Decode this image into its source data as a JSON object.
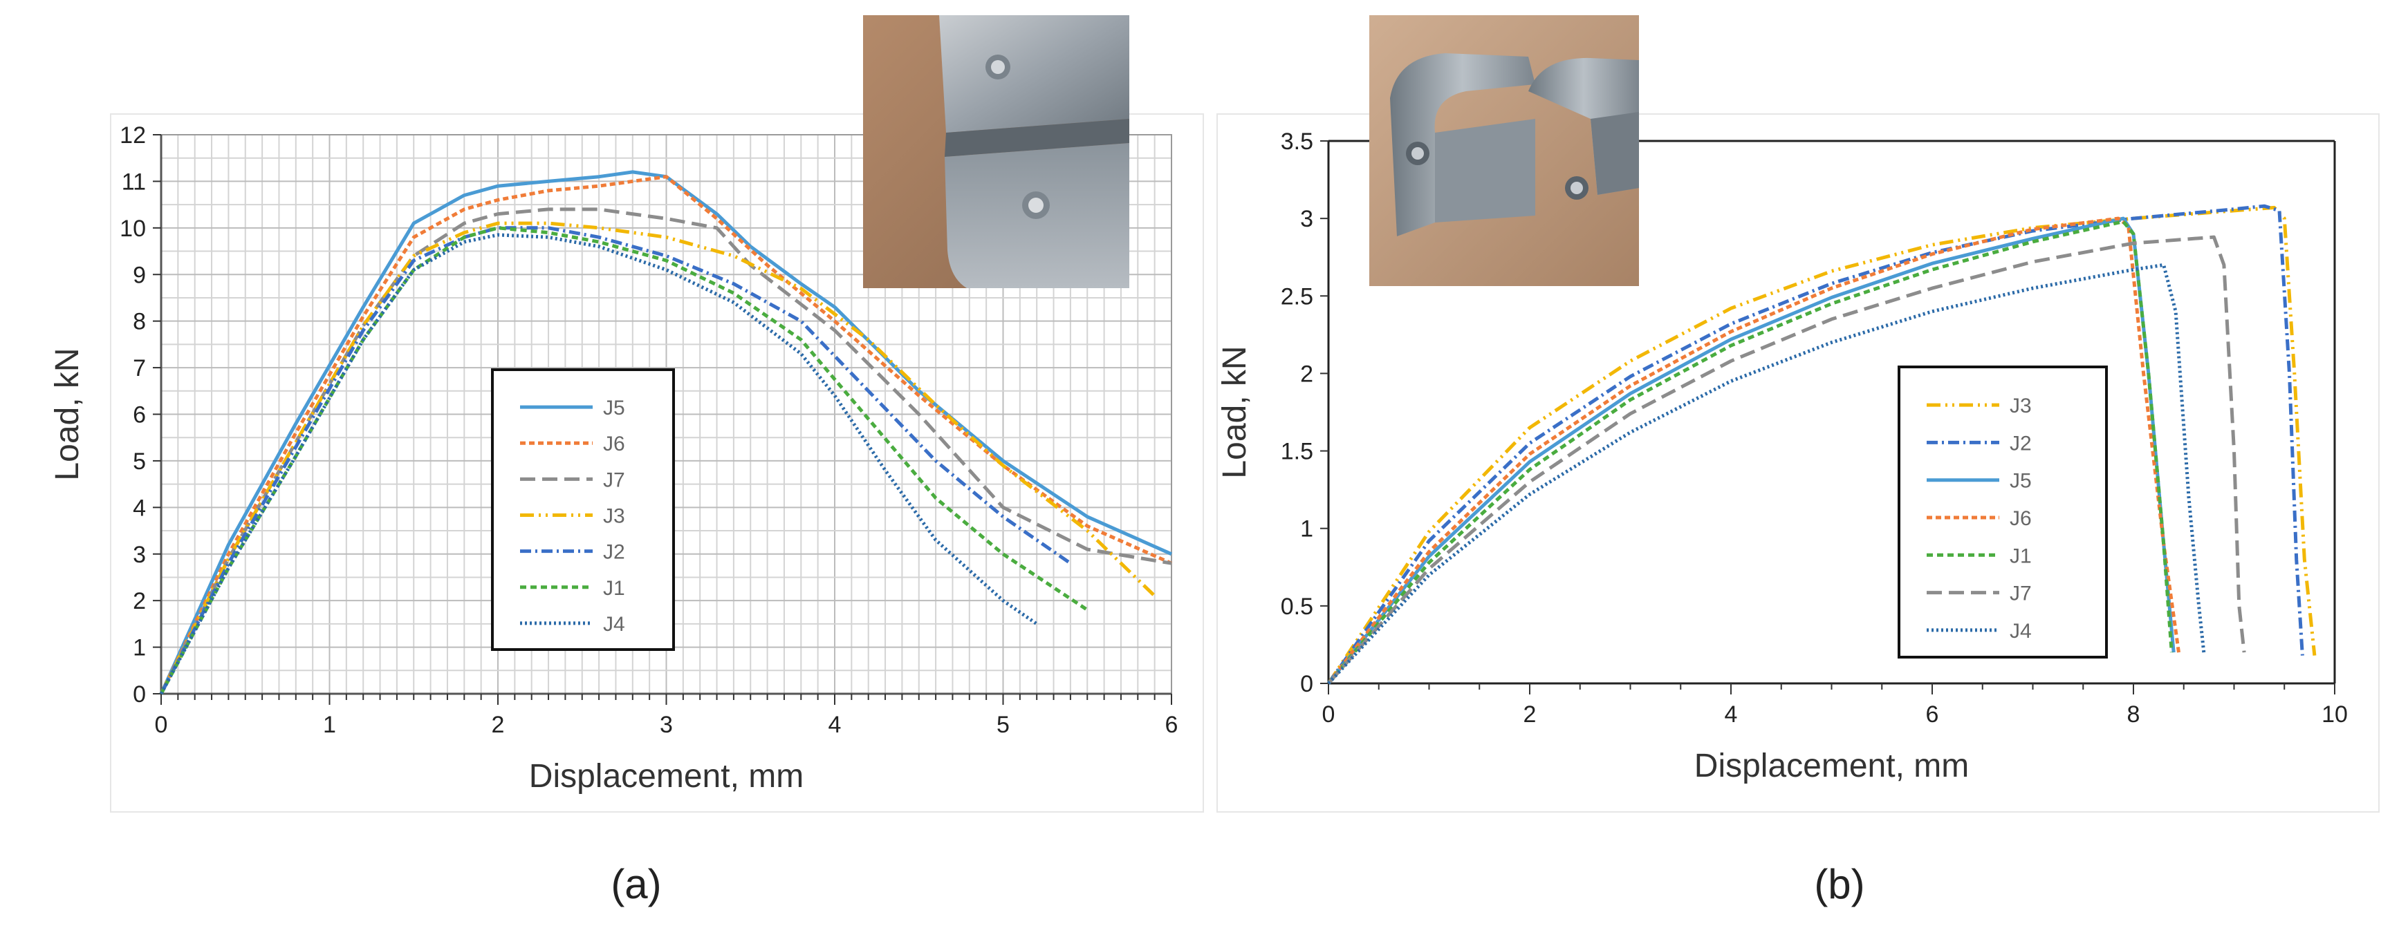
{
  "panels": [
    {
      "label": "(a)",
      "photo_icon": "bent-metal-plates-with-rivet-photo",
      "chart_data": {
        "type": "line",
        "title": "",
        "xlabel": "Displacement, mm",
        "ylabel": "Load, kN",
        "xlim": [
          0,
          6
        ],
        "ylim": [
          0,
          12
        ],
        "xticks": [
          0,
          1,
          2,
          3,
          4,
          5,
          6
        ],
        "yticks": [
          0,
          1,
          2,
          3,
          4,
          5,
          6,
          7,
          8,
          9,
          10,
          11,
          12
        ],
        "grid": true,
        "legend": "center",
        "series": [
          {
            "name": "J5",
            "color": "#4a9bd4",
            "dash": "solid",
            "points": [
              [
                0,
                0
              ],
              [
                0.4,
                3.2
              ],
              [
                0.8,
                5.8
              ],
              [
                1.2,
                8.3
              ],
              [
                1.5,
                10.1
              ],
              [
                1.8,
                10.7
              ],
              [
                2.0,
                10.9
              ],
              [
                2.3,
                11.0
              ],
              [
                2.6,
                11.1
              ],
              [
                2.8,
                11.2
              ],
              [
                3.0,
                11.1
              ],
              [
                3.3,
                10.3
              ],
              [
                3.5,
                9.6
              ],
              [
                3.8,
                8.8
              ],
              [
                4.0,
                8.3
              ],
              [
                4.5,
                6.5
              ],
              [
                5.0,
                5.0
              ],
              [
                5.5,
                3.8
              ],
              [
                6.0,
                3.0
              ]
            ]
          },
          {
            "name": "J6",
            "color": "#f07c38",
            "dash": "8,5",
            "points": [
              [
                0,
                0
              ],
              [
                0.4,
                3.0
              ],
              [
                0.8,
                5.6
              ],
              [
                1.2,
                8.1
              ],
              [
                1.5,
                9.8
              ],
              [
                1.8,
                10.4
              ],
              [
                2.0,
                10.6
              ],
              [
                2.3,
                10.8
              ],
              [
                2.6,
                10.9
              ],
              [
                2.8,
                11.0
              ],
              [
                3.0,
                11.1
              ],
              [
                3.3,
                10.2
              ],
              [
                3.6,
                9.2
              ],
              [
                4.0,
                8.0
              ],
              [
                4.5,
                6.4
              ],
              [
                5.0,
                4.9
              ],
              [
                5.5,
                3.6
              ],
              [
                6.0,
                2.8
              ]
            ]
          },
          {
            "name": "J7",
            "color": "#8c8c8c",
            "dash": "22,10",
            "points": [
              [
                0,
                0
              ],
              [
                0.4,
                2.9
              ],
              [
                0.8,
                5.4
              ],
              [
                1.2,
                7.9
              ],
              [
                1.5,
                9.4
              ],
              [
                1.8,
                10.1
              ],
              [
                2.0,
                10.3
              ],
              [
                2.3,
                10.4
              ],
              [
                2.6,
                10.4
              ],
              [
                3.0,
                10.2
              ],
              [
                3.3,
                10.0
              ],
              [
                3.5,
                9.2
              ],
              [
                4.0,
                7.8
              ],
              [
                4.5,
                6.0
              ],
              [
                5.0,
                4.0
              ],
              [
                5.5,
                3.1
              ],
              [
                6.0,
                2.8
              ]
            ]
          },
          {
            "name": "J3",
            "color": "#f2b705",
            "dash": "20,7,3,7,3,7",
            "points": [
              [
                0,
                0
              ],
              [
                0.4,
                2.9
              ],
              [
                0.8,
                5.4
              ],
              [
                1.2,
                7.9
              ],
              [
                1.5,
                9.4
              ],
              [
                1.8,
                9.9
              ],
              [
                2.0,
                10.1
              ],
              [
                2.3,
                10.1
              ],
              [
                2.6,
                10.0
              ],
              [
                3.0,
                9.8
              ],
              [
                3.4,
                9.4
              ],
              [
                3.8,
                8.7
              ],
              [
                4.2,
                7.6
              ],
              [
                4.6,
                6.2
              ],
              [
                5.0,
                4.9
              ],
              [
                5.5,
                3.5
              ],
              [
                5.9,
                2.1
              ]
            ]
          },
          {
            "name": "J2",
            "color": "#3a6fc7",
            "dash": "16,6,3,6",
            "points": [
              [
                0,
                0
              ],
              [
                0.4,
                2.8
              ],
              [
                0.8,
                5.3
              ],
              [
                1.2,
                7.8
              ],
              [
                1.5,
                9.3
              ],
              [
                1.8,
                9.8
              ],
              [
                2.0,
                10.0
              ],
              [
                2.3,
                10.0
              ],
              [
                2.6,
                9.8
              ],
              [
                3.0,
                9.4
              ],
              [
                3.4,
                8.8
              ],
              [
                3.8,
                8.0
              ],
              [
                4.2,
                6.5
              ],
              [
                4.6,
                5.0
              ],
              [
                5.0,
                3.8
              ],
              [
                5.4,
                2.8
              ]
            ]
          },
          {
            "name": "J1",
            "color": "#4aac3f",
            "dash": "9,6",
            "points": [
              [
                0,
                0
              ],
              [
                0.4,
                2.7
              ],
              [
                0.8,
                5.1
              ],
              [
                1.2,
                7.6
              ],
              [
                1.5,
                9.1
              ],
              [
                1.8,
                9.8
              ],
              [
                2.0,
                10.0
              ],
              [
                2.3,
                9.9
              ],
              [
                2.6,
                9.7
              ],
              [
                3.0,
                9.3
              ],
              [
                3.4,
                8.6
              ],
              [
                3.8,
                7.6
              ],
              [
                4.2,
                5.9
              ],
              [
                4.6,
                4.2
              ],
              [
                5.0,
                3.0
              ],
              [
                5.5,
                1.8
              ]
            ]
          },
          {
            "name": "J4",
            "color": "#2b6aa8",
            "dash": "3,4",
            "points": [
              [
                0,
                0
              ],
              [
                0.4,
                2.7
              ],
              [
                0.8,
                5.1
              ],
              [
                1.2,
                7.6
              ],
              [
                1.5,
                9.1
              ],
              [
                1.8,
                9.7
              ],
              [
                2.0,
                9.85
              ],
              [
                2.3,
                9.8
              ],
              [
                2.6,
                9.6
              ],
              [
                3.0,
                9.1
              ],
              [
                3.4,
                8.4
              ],
              [
                3.8,
                7.3
              ],
              [
                4.0,
                6.4
              ],
              [
                4.3,
                4.8
              ],
              [
                4.6,
                3.3
              ],
              [
                5.0,
                2.0
              ],
              [
                5.2,
                1.5
              ]
            ]
          }
        ]
      }
    },
    {
      "label": "(b)",
      "photo_icon": "u-shaped-metal-channels-with-rivets-photo",
      "chart_data": {
        "type": "line",
        "title": "",
        "xlabel": "Displacement, mm",
        "ylabel": "Load, kN",
        "xlim": [
          0,
          10
        ],
        "ylim": [
          0,
          3.5
        ],
        "xticks": [
          0,
          2,
          4,
          6,
          8,
          10
        ],
        "yticks": [
          0,
          0.5,
          1,
          1.5,
          2,
          2.5,
          3,
          3.5
        ],
        "grid": false,
        "legend": "center-right",
        "series": [
          {
            "name": "J3",
            "color": "#f2b705",
            "dash": "20,7,3,7,3,7",
            "points": [
              [
                0,
                0
              ],
              [
                1,
                0.98
              ],
              [
                2,
                1.65
              ],
              [
                3,
                2.08
              ],
              [
                4,
                2.42
              ],
              [
                5,
                2.66
              ],
              [
                6,
                2.83
              ],
              [
                7,
                2.94
              ],
              [
                8,
                3.0
              ],
              [
                9,
                3.05
              ],
              [
                9.4,
                3.07
              ],
              [
                9.5,
                3.0
              ],
              [
                9.6,
                2.0
              ],
              [
                9.7,
                0.8
              ],
              [
                9.8,
                0.18
              ]
            ]
          },
          {
            "name": "J2",
            "color": "#3a6fc7",
            "dash": "16,6,3,6",
            "points": [
              [
                0,
                0
              ],
              [
                1,
                0.92
              ],
              [
                2,
                1.55
              ],
              [
                3,
                1.98
              ],
              [
                4,
                2.32
              ],
              [
                5,
                2.58
              ],
              [
                6,
                2.78
              ],
              [
                7,
                2.92
              ],
              [
                8,
                3.0
              ],
              [
                9,
                3.06
              ],
              [
                9.3,
                3.08
              ],
              [
                9.45,
                3.05
              ],
              [
                9.55,
                2.0
              ],
              [
                9.62,
                0.8
              ],
              [
                9.68,
                0.18
              ]
            ]
          },
          {
            "name": "J5",
            "color": "#4a9bd4",
            "dash": "solid",
            "points": [
              [
                0,
                0
              ],
              [
                1,
                0.82
              ],
              [
                2,
                1.43
              ],
              [
                3,
                1.87
              ],
              [
                4,
                2.22
              ],
              [
                5,
                2.49
              ],
              [
                6,
                2.71
              ],
              [
                7,
                2.87
              ],
              [
                7.9,
                3.0
              ],
              [
                8.0,
                2.9
              ],
              [
                8.15,
                2.0
              ],
              [
                8.3,
                0.9
              ],
              [
                8.4,
                0.2
              ]
            ]
          },
          {
            "name": "J6",
            "color": "#f07c38",
            "dash": "8,5",
            "points": [
              [
                0,
                0
              ],
              [
                1,
                0.85
              ],
              [
                2,
                1.48
              ],
              [
                3,
                1.92
              ],
              [
                4,
                2.27
              ],
              [
                5,
                2.55
              ],
              [
                6,
                2.77
              ],
              [
                7,
                2.93
              ],
              [
                7.85,
                3.0
              ],
              [
                7.95,
                2.95
              ],
              [
                8.1,
                2.0
              ],
              [
                8.3,
                0.9
              ],
              [
                8.45,
                0.2
              ]
            ]
          },
          {
            "name": "J1",
            "color": "#4aac3f",
            "dash": "9,6",
            "points": [
              [
                0,
                0
              ],
              [
                1,
                0.78
              ],
              [
                2,
                1.38
              ],
              [
                3,
                1.83
              ],
              [
                4,
                2.18
              ],
              [
                5,
                2.45
              ],
              [
                6,
                2.67
              ],
              [
                7,
                2.85
              ],
              [
                7.9,
                2.98
              ],
              [
                8.0,
                2.9
              ],
              [
                8.15,
                2.0
              ],
              [
                8.3,
                0.9
              ],
              [
                8.38,
                0.2
              ]
            ]
          },
          {
            "name": "J7",
            "color": "#8c8c8c",
            "dash": "22,10",
            "points": [
              [
                0,
                0
              ],
              [
                1,
                0.74
              ],
              [
                2,
                1.3
              ],
              [
                3,
                1.74
              ],
              [
                4,
                2.08
              ],
              [
                5,
                2.35
              ],
              [
                6,
                2.55
              ],
              [
                7,
                2.72
              ],
              [
                8,
                2.84
              ],
              [
                8.8,
                2.88
              ],
              [
                8.9,
                2.7
              ],
              [
                9.0,
                1.5
              ],
              [
                9.05,
                0.5
              ],
              [
                9.1,
                0.2
              ]
            ]
          },
          {
            "name": "J4",
            "color": "#2b6aa8",
            "dash": "3,4",
            "points": [
              [
                0,
                0
              ],
              [
                1,
                0.7
              ],
              [
                2,
                1.22
              ],
              [
                3,
                1.62
              ],
              [
                4,
                1.95
              ],
              [
                5,
                2.2
              ],
              [
                6,
                2.4
              ],
              [
                7,
                2.55
              ],
              [
                8,
                2.67
              ],
              [
                8.3,
                2.7
              ],
              [
                8.42,
                2.4
              ],
              [
                8.55,
                1.2
              ],
              [
                8.65,
                0.5
              ],
              [
                8.7,
                0.2
              ]
            ]
          }
        ]
      }
    }
  ]
}
